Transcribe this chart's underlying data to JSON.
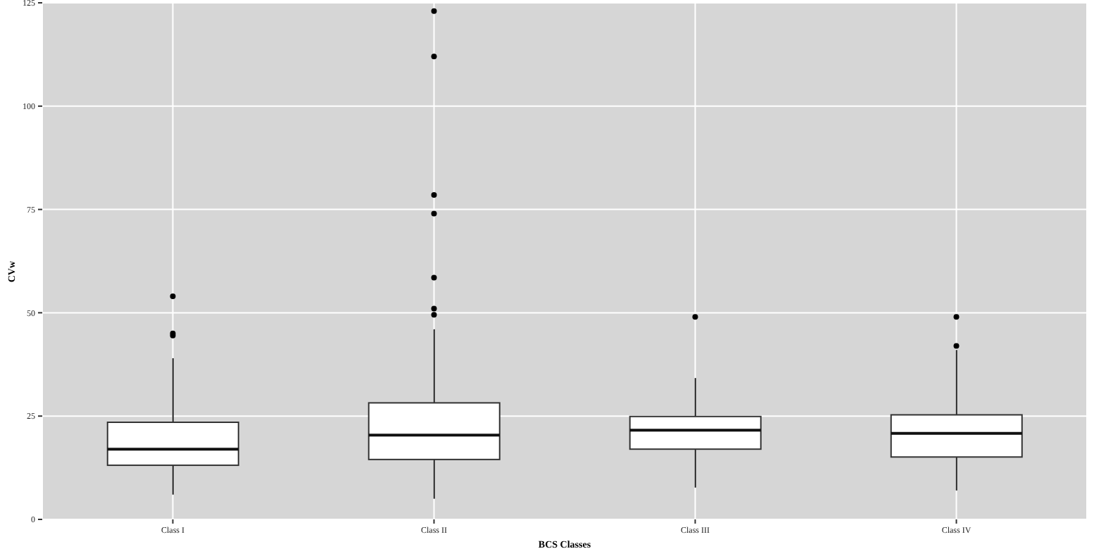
{
  "chart_data": {
    "type": "box",
    "xlabel": "BCS Classes",
    "ylabel": "CVw",
    "categories": [
      "Class I",
      "Class II",
      "Class III",
      "Class IV"
    ],
    "boxes": [
      {
        "low": 6,
        "q1": 13.1,
        "median": 17,
        "q3": 23.5,
        "high": 39,
        "outliers": [
          54,
          45,
          44.5
        ]
      },
      {
        "low": 5,
        "q1": 14.5,
        "median": 20.4,
        "q3": 28.2,
        "high": 46,
        "outliers": [
          123,
          112,
          78.5,
          74,
          58.5,
          51,
          49.5
        ]
      },
      {
        "low": 7.7,
        "q1": 17,
        "median": 21.6,
        "q3": 24.9,
        "high": 34.2,
        "outliers": [
          49
        ]
      },
      {
        "low": 7,
        "q1": 15.1,
        "median": 20.8,
        "q3": 25.3,
        "high": 41,
        "outliers": [
          49,
          42
        ]
      }
    ],
    "color": "#ffffff",
    "ylim": [
      0,
      125
    ],
    "yticks": [
      0,
      25,
      50,
      75,
      100,
      125
    ],
    "grid": true,
    "marker": "circle"
  }
}
